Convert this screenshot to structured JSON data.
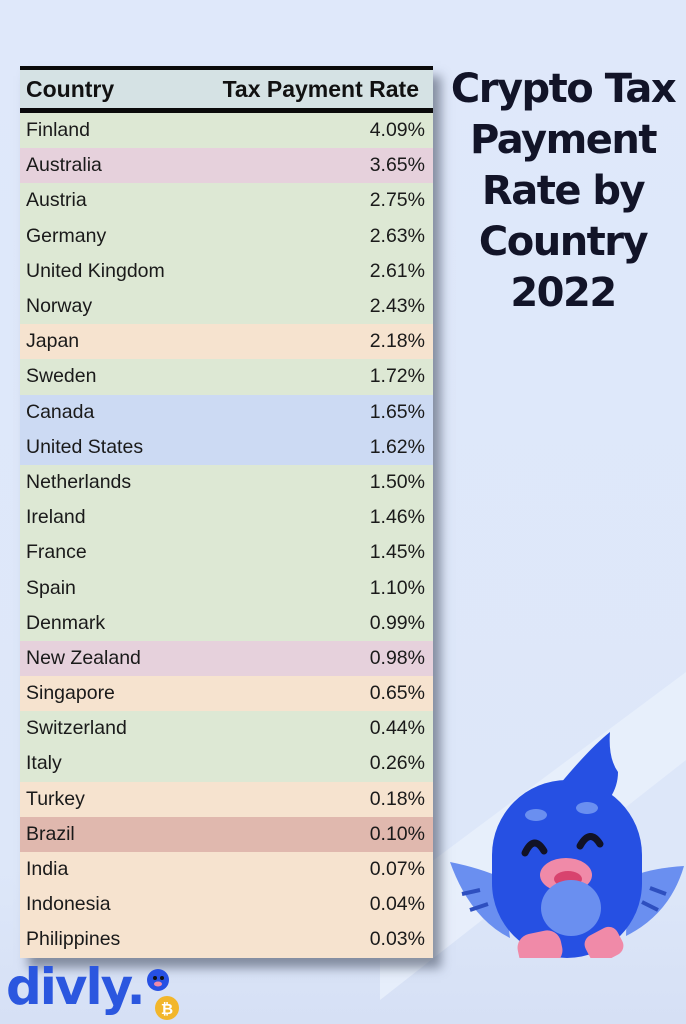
{
  "title": {
    "line1": "Crypto Tax",
    "line2": "Payment",
    "line3": "Rate by",
    "line4": "Country",
    "line5": "2022"
  },
  "table": {
    "headers": {
      "country": "Country",
      "rate": "Tax Payment Rate"
    },
    "rows": [
      {
        "country": "Finland",
        "rate": "4.09%",
        "color": "#dde8d4"
      },
      {
        "country": "Australia",
        "rate": "3.65%",
        "color": "#e6d1dc"
      },
      {
        "country": "Austria",
        "rate": "2.75%",
        "color": "#dde8d4"
      },
      {
        "country": "Germany",
        "rate": "2.63%",
        "color": "#dde8d4"
      },
      {
        "country": "United Kingdom",
        "rate": "2.61%",
        "color": "#dde8d4"
      },
      {
        "country": "Norway",
        "rate": "2.43%",
        "color": "#dde8d4"
      },
      {
        "country": "Japan",
        "rate": "2.18%",
        "color": "#f6e3cf"
      },
      {
        "country": "Sweden",
        "rate": "1.72%",
        "color": "#dde8d4"
      },
      {
        "country": "Canada",
        "rate": "1.65%",
        "color": "#ccdaf3"
      },
      {
        "country": "United States",
        "rate": "1.62%",
        "color": "#ccdaf3"
      },
      {
        "country": "Netherlands",
        "rate": "1.50%",
        "color": "#dde8d4"
      },
      {
        "country": "Ireland",
        "rate": "1.46%",
        "color": "#dde8d4"
      },
      {
        "country": "France",
        "rate": "1.45%",
        "color": "#dde8d4"
      },
      {
        "country": "Spain",
        "rate": "1.10%",
        "color": "#dde8d4"
      },
      {
        "country": "Denmark",
        "rate": "0.99%",
        "color": "#dde8d4"
      },
      {
        "country": "New Zealand",
        "rate": "0.98%",
        "color": "#e6d1dc"
      },
      {
        "country": "Singapore",
        "rate": "0.65%",
        "color": "#f6e3cf"
      },
      {
        "country": "Switzerland",
        "rate": "0.44%",
        "color": "#dde8d4"
      },
      {
        "country": "Italy",
        "rate": "0.26%",
        "color": "#dde8d4"
      },
      {
        "country": "Turkey",
        "rate": "0.18%",
        "color": "#f6e3cf"
      },
      {
        "country": "Brazil",
        "rate": "0.10%",
        "color": "#e0b8ae"
      },
      {
        "country": "India",
        "rate": "0.07%",
        "color": "#f6e3cf"
      },
      {
        "country": "Indonesia",
        "rate": "0.04%",
        "color": "#f6e3cf"
      },
      {
        "country": "Philippines",
        "rate": "0.03%",
        "color": "#f6e3cf"
      }
    ]
  },
  "brand": {
    "logo_text": "divly.",
    "mascot": "blue-bird-mascot-icon",
    "coin": "bitcoin-icon"
  },
  "colors": {
    "background": "#dfe8fa",
    "brand_blue": "#2b57df",
    "title": "#121428"
  },
  "chart_data": {
    "type": "table",
    "title": "Crypto Tax Payment Rate by Country 2022",
    "columns": [
      "Country",
      "Tax Payment Rate"
    ],
    "categories": [
      "Finland",
      "Australia",
      "Austria",
      "Germany",
      "United Kingdom",
      "Norway",
      "Japan",
      "Sweden",
      "Canada",
      "United States",
      "Netherlands",
      "Ireland",
      "France",
      "Spain",
      "Denmark",
      "New Zealand",
      "Singapore",
      "Switzerland",
      "Italy",
      "Turkey",
      "Brazil",
      "India",
      "Indonesia",
      "Philippines"
    ],
    "values": [
      4.09,
      3.65,
      2.75,
      2.63,
      2.61,
      2.43,
      2.18,
      1.72,
      1.65,
      1.62,
      1.5,
      1.46,
      1.45,
      1.1,
      0.99,
      0.98,
      0.65,
      0.44,
      0.26,
      0.18,
      0.1,
      0.07,
      0.04,
      0.03
    ],
    "unit": "%"
  }
}
